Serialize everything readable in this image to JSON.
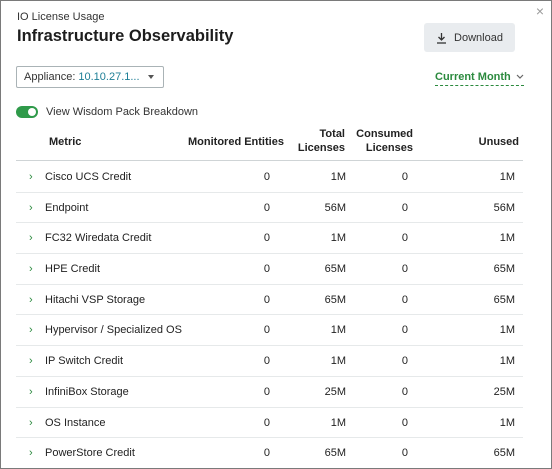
{
  "header": {
    "subtitle": "IO License Usage",
    "title": "Infrastructure Observability",
    "download_label": "Download",
    "close_icon": "×"
  },
  "filters": {
    "appliance_label": "Appliance:",
    "appliance_value": "10.10.27.1...",
    "period": "Current Month",
    "period_icon": "chevron-down-icon"
  },
  "toggle": {
    "label": "View Wisdom Pack Breakdown",
    "on": true,
    "color": "#2f9a4a"
  },
  "table": {
    "columns": {
      "metric": "Metric",
      "monitored": "Monitored Entities",
      "total_1": "Total",
      "total_2": "Licenses",
      "consumed_1": "Consumed",
      "consumed_2": "Licenses",
      "unused": "Unused"
    },
    "rows": [
      {
        "metric": "Cisco UCS Credit",
        "monitored": "0",
        "total": "1M",
        "consumed": "0",
        "unused": "1M"
      },
      {
        "metric": "Endpoint",
        "monitored": "0",
        "total": "56M",
        "consumed": "0",
        "unused": "56M"
      },
      {
        "metric": "FC32 Wiredata Credit",
        "monitored": "0",
        "total": "1M",
        "consumed": "0",
        "unused": "1M"
      },
      {
        "metric": "HPE Credit",
        "monitored": "0",
        "total": "65M",
        "consumed": "0",
        "unused": "65M"
      },
      {
        "metric": "Hitachi VSP Storage",
        "monitored": "0",
        "total": "65M",
        "consumed": "0",
        "unused": "65M"
      },
      {
        "metric": "Hypervisor / Specialized OS",
        "monitored": "0",
        "total": "1M",
        "consumed": "0",
        "unused": "1M"
      },
      {
        "metric": "IP Switch Credit",
        "monitored": "0",
        "total": "1M",
        "consumed": "0",
        "unused": "1M"
      },
      {
        "metric": "InfiniBox Storage",
        "monitored": "0",
        "total": "25M",
        "consumed": "0",
        "unused": "25M"
      },
      {
        "metric": "OS Instance",
        "monitored": "0",
        "total": "1M",
        "consumed": "0",
        "unused": "1M"
      },
      {
        "metric": "PowerStore Credit",
        "monitored": "0",
        "total": "65M",
        "consumed": "0",
        "unused": "65M"
      }
    ],
    "expand_icon": "›"
  }
}
